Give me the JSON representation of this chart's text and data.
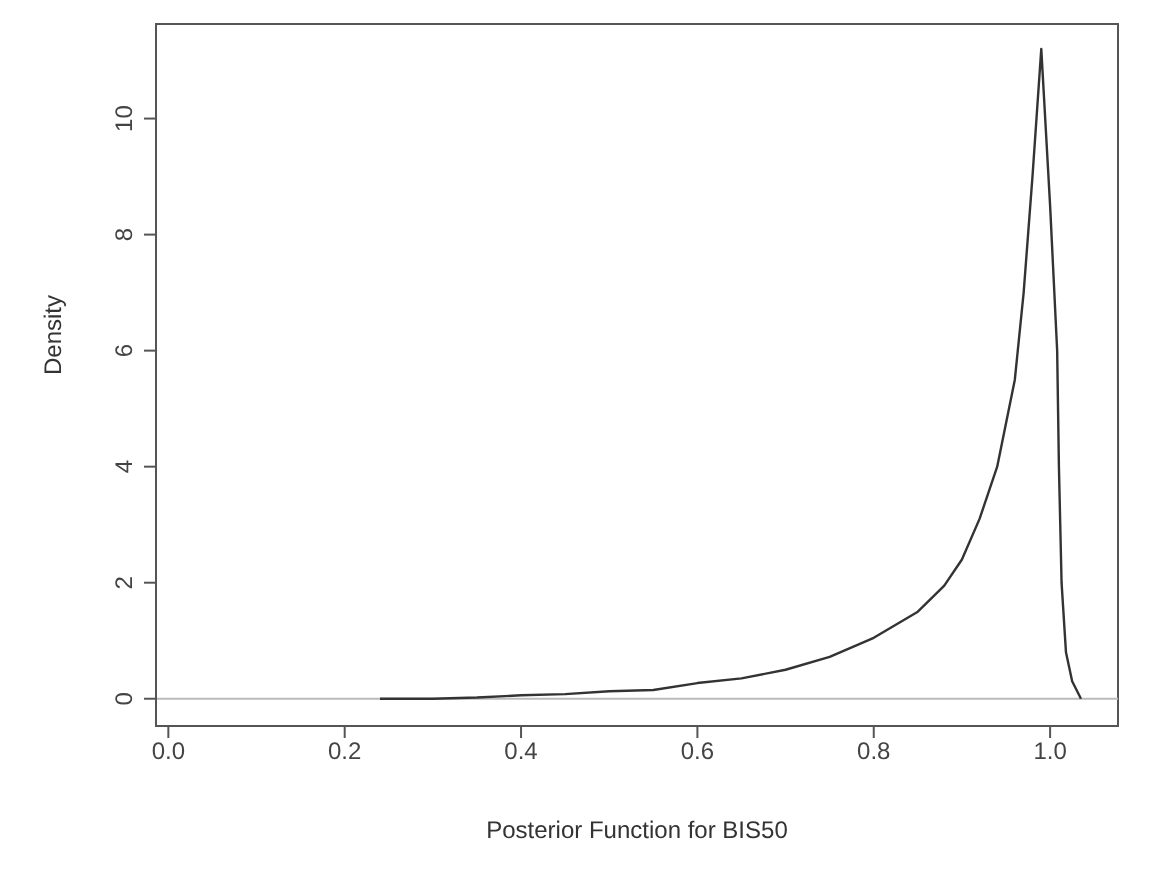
{
  "chart_data": {
    "type": "line",
    "xlabel": "Posterior Function for BIS50",
    "ylabel": "Density",
    "x": [
      0.24,
      0.3,
      0.35,
      0.4,
      0.45,
      0.5,
      0.55,
      0.6,
      0.65,
      0.7,
      0.75,
      0.8,
      0.85,
      0.88,
      0.9,
      0.92,
      0.94,
      0.96,
      0.97,
      0.98,
      0.99,
      1.0,
      1.008,
      1.01,
      1.013,
      1.018,
      1.025,
      1.035
    ],
    "series": [
      {
        "color": "#333333",
        "values": [
          0.0,
          0.0,
          0.02,
          0.06,
          0.08,
          0.13,
          0.15,
          0.27,
          0.35,
          0.5,
          0.72,
          1.05,
          1.5,
          1.95,
          2.4,
          3.1,
          4.0,
          5.5,
          7.0,
          9.0,
          11.2,
          8.5,
          6.0,
          4.0,
          2.0,
          0.8,
          0.3,
          0.0
        ]
      }
    ],
    "xlim": [
      -0.014,
      1.077
    ],
    "ylim": [
      -0.47,
      11.63
    ],
    "xticks": [
      {
        "value": 0,
        "label": "0.0"
      },
      0.2,
      0.4,
      0.6,
      0.8,
      {
        "value": 1,
        "label": "1.0"
      }
    ],
    "yticks": [
      0,
      2,
      4,
      6,
      8,
      10
    ],
    "ref_lines": [
      {
        "axis": "y",
        "value": 0,
        "color": "#bbbbbb"
      }
    ],
    "grid": false,
    "legend": false,
    "marker": "none",
    "line_style": "solid"
  }
}
